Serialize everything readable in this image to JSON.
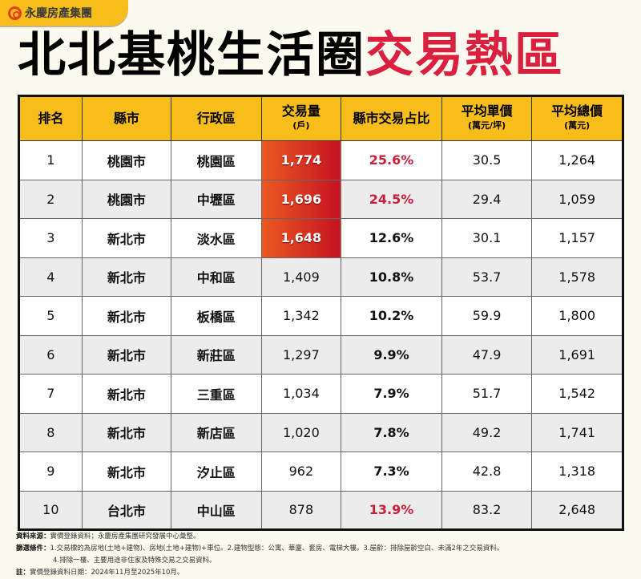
{
  "brand": {
    "name": "永慶房產集團",
    "icon": "yungching-logo-icon",
    "color": "#e2401c"
  },
  "title": {
    "part1": "北北基桃生活圈",
    "part2": "交易熱區",
    "accent": "#d9203f"
  },
  "table": {
    "headers": [
      {
        "label": "排名"
      },
      {
        "label": "縣市"
      },
      {
        "label": "行政區"
      },
      {
        "label": "交易量",
        "unit": "(戶)"
      },
      {
        "label": "縣市交易占比"
      },
      {
        "label": "平均單價",
        "unit": "(萬元/坪)"
      },
      {
        "label": "平均總價",
        "unit": "(萬元)"
      }
    ],
    "rows": [
      {
        "rank": "1",
        "city": "桃園市",
        "district": "桃園區",
        "volume": "1,774",
        "share": "25.6%",
        "unit_price": "30.5",
        "total_price": "1,264",
        "hot": true,
        "share_red": true
      },
      {
        "rank": "2",
        "city": "桃園市",
        "district": "中壢區",
        "volume": "1,696",
        "share": "24.5%",
        "unit_price": "29.4",
        "total_price": "1,059",
        "hot": true,
        "share_red": true
      },
      {
        "rank": "3",
        "city": "新北市",
        "district": "淡水區",
        "volume": "1,648",
        "share": "12.6%",
        "unit_price": "30.1",
        "total_price": "1,157",
        "hot": true,
        "share_red": false
      },
      {
        "rank": "4",
        "city": "新北市",
        "district": "中和區",
        "volume": "1,409",
        "share": "10.8%",
        "unit_price": "53.7",
        "total_price": "1,578",
        "hot": false,
        "share_red": false
      },
      {
        "rank": "5",
        "city": "新北市",
        "district": "板橋區",
        "volume": "1,342",
        "share": "10.2%",
        "unit_price": "59.9",
        "total_price": "1,800",
        "hot": false,
        "share_red": false
      },
      {
        "rank": "6",
        "city": "新北市",
        "district": "新莊區",
        "volume": "1,297",
        "share": "9.9%",
        "unit_price": "47.9",
        "total_price": "1,691",
        "hot": false,
        "share_red": false
      },
      {
        "rank": "7",
        "city": "新北市",
        "district": "三重區",
        "volume": "1,034",
        "share": "7.9%",
        "unit_price": "51.7",
        "total_price": "1,542",
        "hot": false,
        "share_red": false
      },
      {
        "rank": "8",
        "city": "新北市",
        "district": "新店區",
        "volume": "1,020",
        "share": "7.8%",
        "unit_price": "49.2",
        "total_price": "1,741",
        "hot": false,
        "share_red": false
      },
      {
        "rank": "9",
        "city": "新北市",
        "district": "汐止區",
        "volume": "962",
        "share": "7.3%",
        "unit_price": "42.8",
        "total_price": "1,318",
        "hot": false,
        "share_red": false
      },
      {
        "rank": "10",
        "city": "台北市",
        "district": "中山區",
        "volume": "878",
        "share": "13.9%",
        "unit_price": "83.2",
        "total_price": "2,648",
        "hot": false,
        "share_red": true
      }
    ]
  },
  "notes": {
    "source_label": "資料來源：",
    "source": "實價登錄資料；永慶房產集團研究發展中心彙整。",
    "filter_label": "篩選條件：",
    "filter1": "1.交易標的為房地(土地+建物)、房地(土地+建物)+車位。2.建物型態：公寓、華廈、套房、電梯大樓。3.屋齡：排除屋齡空白、未滿2年之交易資料。",
    "filter2": "4.排除一樓、主要用途非住家及特殊交易之交易資料。",
    "note_label": "註：",
    "note": "實價登錄資料日期：2024年11月至2025年10月。"
  }
}
